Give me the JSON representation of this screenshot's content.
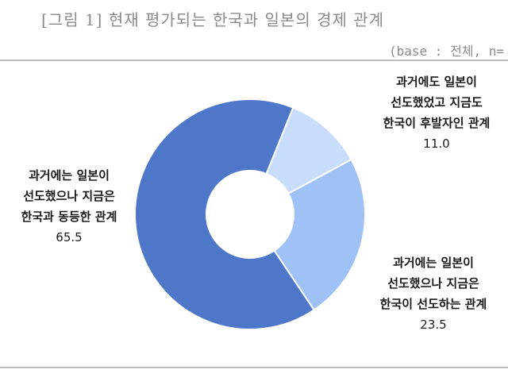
{
  "header": {
    "title": "[그림 1] 현재 평가되는 한국과 일본의 경제 관계",
    "base_note": "(base : 전체, n="
  },
  "chart_data": {
    "type": "pie",
    "variant": "donut",
    "slices": [
      {
        "label_lines": [
          "과거에는 일본이",
          "선도했으나 지금은",
          "한국과 동등한 관계"
        ],
        "value": 65.5,
        "value_text": "65.5",
        "color": "#4f77c9"
      },
      {
        "label_lines": [
          "과거에도 일본이",
          "선도했었고 지금도",
          "한국이 후발자인 관계"
        ],
        "value": 11.0,
        "value_text": "11.0",
        "color": "#c8dcfb"
      },
      {
        "label_lines": [
          "과거에는 일본이",
          "선도했으나 지금은",
          "한국이 선도하는 관계"
        ],
        "value": 23.5,
        "value_text": "23.5",
        "color": "#9ec2f5"
      }
    ]
  }
}
